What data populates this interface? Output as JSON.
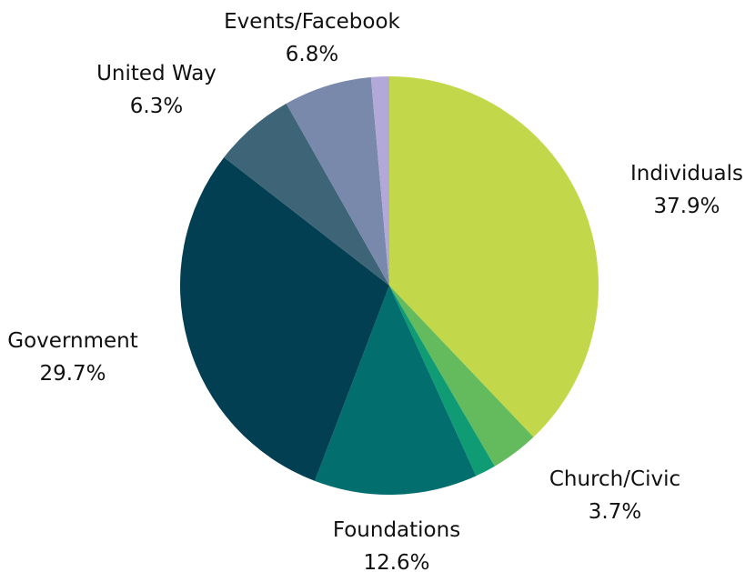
{
  "chart_data": {
    "type": "pie",
    "title": "",
    "slices": [
      {
        "label": "Individuals",
        "value": 37.9,
        "display": "37.9%",
        "color": "#c2d84a"
      },
      {
        "label": "Church/Civic",
        "value": 3.7,
        "display": "3.7%",
        "color": "#63bb5e"
      },
      {
        "label": "",
        "value": 1.6,
        "display": "",
        "color": "#0f9b74"
      },
      {
        "label": "Foundations",
        "value": 12.6,
        "display": "12.6%",
        "color": "#026e6e"
      },
      {
        "label": "Government",
        "value": 29.7,
        "display": "29.7%",
        "color": "#023f52"
      },
      {
        "label": "United Way",
        "value": 6.3,
        "display": "6.3%",
        "color": "#3e6478"
      },
      {
        "label": "Events/Facebook",
        "value": 6.8,
        "display": "6.8%",
        "color": "#7889ab"
      },
      {
        "label": "",
        "value": 1.4,
        "display": "",
        "color": "#b3a9d8"
      }
    ],
    "legend": "none"
  }
}
